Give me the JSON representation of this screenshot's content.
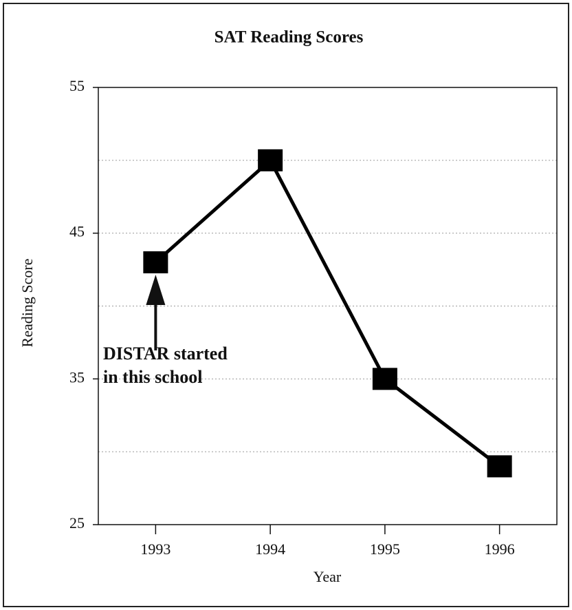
{
  "chart_data": {
    "type": "line",
    "title": "SAT Reading Scores",
    "xlabel": "Year",
    "ylabel": "Reading Score",
    "categories": [
      "1993",
      "1994",
      "1995",
      "1996"
    ],
    "values": [
      43,
      50,
      35,
      29
    ],
    "color": "#000000",
    "ylim": [
      25,
      55
    ],
    "yticks": [
      25,
      35,
      45,
      55
    ],
    "minor_yticks": [
      30,
      40,
      50
    ],
    "grid": true,
    "annotation": [
      "DISTAR started",
      "in this school"
    ]
  }
}
